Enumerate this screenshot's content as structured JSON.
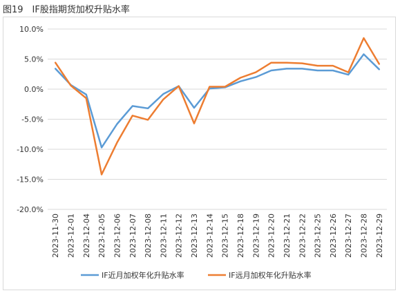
{
  "figure_title": "图19　IF股指期货加权升贴水率",
  "colors": {
    "near": "#5b9bd5",
    "far": "#ed7d31",
    "grid": "#d9d9d9",
    "axis": "#bfbfbf"
  },
  "chart_data": {
    "type": "line",
    "title": "",
    "xlabel": "",
    "ylabel": "",
    "ylim": [
      -20,
      10
    ],
    "yticks": [
      10,
      5,
      0,
      -5,
      -10,
      -15,
      -20
    ],
    "ytick_labels": [
      "10.0%",
      "5.0%",
      "0.0%",
      "-5.0%",
      "-10.0%",
      "-15.0%",
      "-20.0%"
    ],
    "grid": "horizontal",
    "legend_position": "bottom",
    "categories": [
      "2023-11-30",
      "2023-12-01",
      "2023-12-04",
      "2023-12-05",
      "2023-12-06",
      "2023-12-07",
      "2023-12-08",
      "2023-12-11",
      "2023-12-12",
      "2023-12-13",
      "2023-12-14",
      "2023-12-15",
      "2023-12-18",
      "2023-12-19",
      "2023-12-20",
      "2023-12-21",
      "2023-12-22",
      "2023-12-25",
      "2023-12-26",
      "2023-12-27",
      "2023-12-28",
      "2023-12-29"
    ],
    "series": [
      {
        "name": "IF近月加权年化升贴水率",
        "color": "#5b9bd5",
        "values": [
          3.4,
          0.7,
          -0.9,
          -9.7,
          -5.8,
          -2.8,
          -3.2,
          -0.8,
          0.5,
          -3.1,
          0.1,
          0.3,
          1.3,
          2.0,
          3.1,
          3.4,
          3.4,
          3.1,
          3.1,
          2.4,
          5.8,
          3.3
        ]
      },
      {
        "name": "IF远月加权年化升贴水率",
        "color": "#ed7d31",
        "values": [
          4.4,
          0.6,
          -1.5,
          -14.2,
          -8.9,
          -4.4,
          -5.1,
          -1.7,
          0.5,
          -5.7,
          0.4,
          0.4,
          1.9,
          2.8,
          4.4,
          4.4,
          4.3,
          3.9,
          3.9,
          2.8,
          8.5,
          4.2
        ]
      }
    ]
  }
}
